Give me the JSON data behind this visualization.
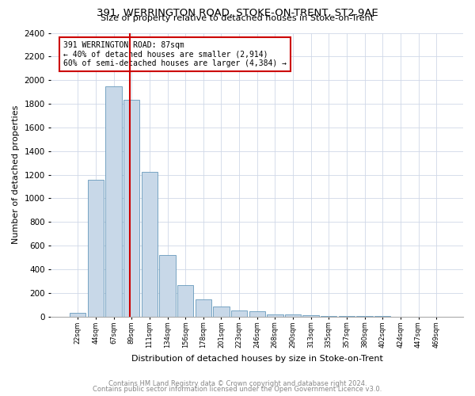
{
  "title": "391, WERRINGTON ROAD, STOKE-ON-TRENT, ST2 9AE",
  "subtitle": "Size of property relative to detached houses in Stoke-on-Trent",
  "xlabel": "Distribution of detached houses by size in Stoke-on-Trent",
  "ylabel": "Number of detached properties",
  "bar_labels": [
    "22sqm",
    "44sqm",
    "67sqm",
    "89sqm",
    "111sqm",
    "134sqm",
    "156sqm",
    "178sqm",
    "201sqm",
    "223sqm",
    "246sqm",
    "268sqm",
    "290sqm",
    "313sqm",
    "335sqm",
    "357sqm",
    "380sqm",
    "402sqm",
    "424sqm",
    "447sqm",
    "469sqm"
  ],
  "bar_values": [
    30,
    1155,
    1950,
    1835,
    1225,
    520,
    265,
    148,
    82,
    50,
    42,
    20,
    15,
    12,
    5,
    4,
    2,
    2,
    1,
    1,
    1
  ],
  "bar_color": "#c8d8e8",
  "bar_edge_color": "#6699bb",
  "marker_label": "391 WERRINGTON ROAD: 87sqm",
  "annotation_line1": "← 40% of detached houses are smaller (2,914)",
  "annotation_line2": "60% of semi-detached houses are larger (4,384) →",
  "vline_color": "#cc0000",
  "annotation_box_edge": "#cc0000",
  "ylim": [
    0,
    2400
  ],
  "yticks": [
    0,
    200,
    400,
    600,
    800,
    1000,
    1200,
    1400,
    1600,
    1800,
    2000,
    2200,
    2400
  ],
  "footnote1": "Contains HM Land Registry data © Crown copyright and database right 2024.",
  "footnote2": "Contains public sector information licensed under the Open Government Licence v3.0."
}
